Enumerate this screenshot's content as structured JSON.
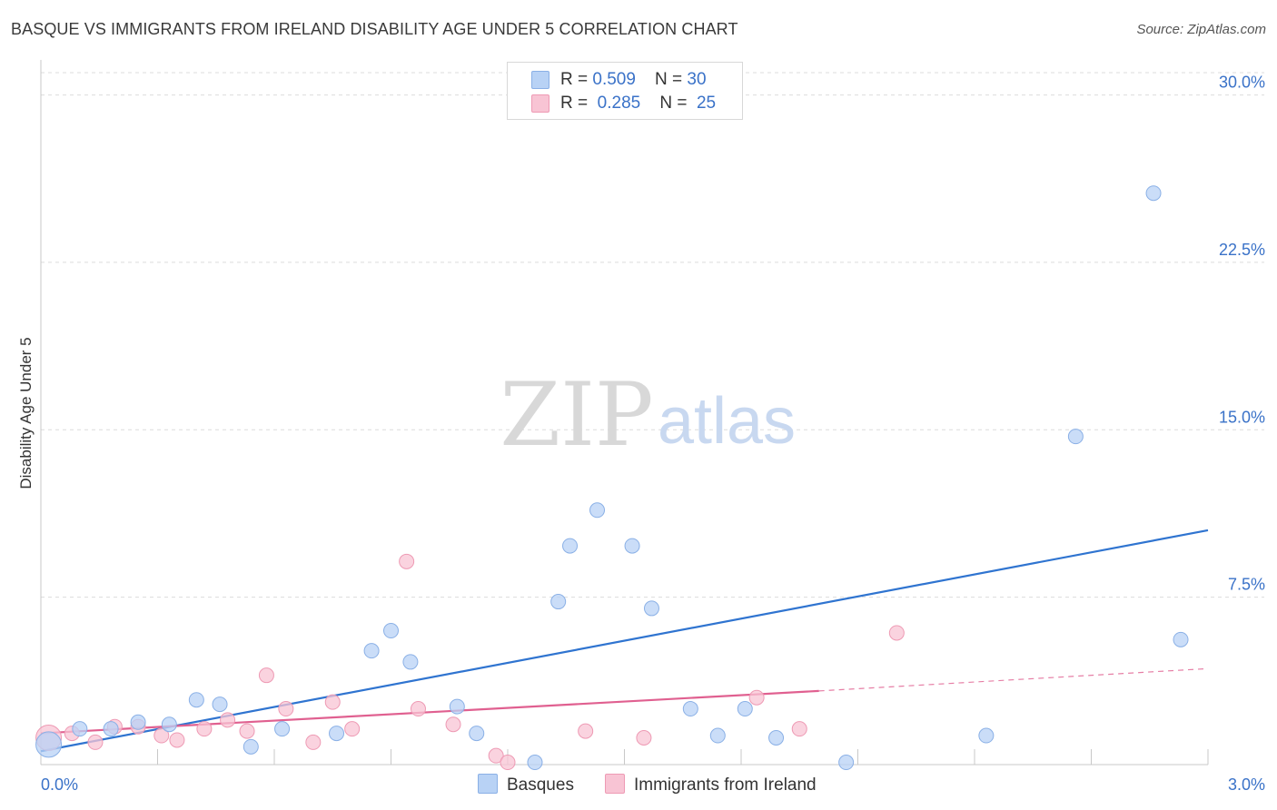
{
  "title": "BASQUE VS IMMIGRANTS FROM IRELAND DISABILITY AGE UNDER 5 CORRELATION CHART",
  "source": "Source: ZipAtlas.com",
  "watermark": {
    "zip": "ZIP",
    "atlas": "atlas"
  },
  "legend": {
    "rows": [
      {
        "r_label": "R = ",
        "r_value": "0.509",
        "n_label": "N = ",
        "n_value": "30"
      },
      {
        "r_label": "R = ",
        "r_value": "0.285",
        "n_label": "N = ",
        "n_value": "25"
      }
    ]
  },
  "bottom_legend": {
    "basques": "Basques",
    "ireland": "Immigrants from Ireland"
  },
  "colors": {
    "basques_fill": "#b8d2f5",
    "basques_stroke": "#8ab0e6",
    "basques_line": "#2f74d0",
    "ireland_fill": "#f8c4d4",
    "ireland_stroke": "#ee9ab4",
    "ireland_line": "#e06090"
  },
  "chart_data": {
    "type": "scatter",
    "title": "BASQUE VS IMMIGRANTS FROM IRELAND DISABILITY AGE UNDER 5 CORRELATION CHART",
    "xlabel": "",
    "ylabel": "Disability Age Under 5",
    "xlim": [
      0,
      3.0
    ],
    "ylim": [
      0,
      31.0
    ],
    "x_tick_labels": [
      "0.0%",
      "3.0%"
    ],
    "y_ticks": [
      7.5,
      15.0,
      22.5,
      30.0
    ],
    "y_tick_labels": [
      "7.5%",
      "15.0%",
      "22.5%",
      "30.0%"
    ],
    "grid": true,
    "series": [
      {
        "name": "Basques",
        "points": [
          [
            0.02,
            0.9
          ],
          [
            0.1,
            1.6
          ],
          [
            0.18,
            1.6
          ],
          [
            0.25,
            1.9
          ],
          [
            0.33,
            1.8
          ],
          [
            0.4,
            2.9
          ],
          [
            0.46,
            2.7
          ],
          [
            0.54,
            0.8
          ],
          [
            0.62,
            1.6
          ],
          [
            0.76,
            1.4
          ],
          [
            0.85,
            5.1
          ],
          [
            0.9,
            6.0
          ],
          [
            0.95,
            4.6
          ],
          [
            1.07,
            2.6
          ],
          [
            1.12,
            1.4
          ],
          [
            1.27,
            0.1
          ],
          [
            1.33,
            7.3
          ],
          [
            1.36,
            9.8
          ],
          [
            1.43,
            11.4
          ],
          [
            1.52,
            9.8
          ],
          [
            1.57,
            7.0
          ],
          [
            1.67,
            2.5
          ],
          [
            1.74,
            1.3
          ],
          [
            1.81,
            2.5
          ],
          [
            1.89,
            1.2
          ],
          [
            2.07,
            0.1
          ],
          [
            2.43,
            1.3
          ],
          [
            2.66,
            14.7
          ],
          [
            2.86,
            25.6
          ],
          [
            2.93,
            5.6
          ]
        ],
        "trend": {
          "x": [
            0.0,
            3.0
          ],
          "y": [
            0.6,
            10.5
          ]
        }
      },
      {
        "name": "Immigrants from Ireland",
        "points": [
          [
            0.02,
            1.2
          ],
          [
            0.08,
            1.4
          ],
          [
            0.14,
            1.0
          ],
          [
            0.19,
            1.7
          ],
          [
            0.25,
            1.7
          ],
          [
            0.31,
            1.3
          ],
          [
            0.35,
            1.1
          ],
          [
            0.42,
            1.6
          ],
          [
            0.48,
            2.0
          ],
          [
            0.53,
            1.5
          ],
          [
            0.58,
            4.0
          ],
          [
            0.63,
            2.5
          ],
          [
            0.7,
            1.0
          ],
          [
            0.75,
            2.8
          ],
          [
            0.8,
            1.6
          ],
          [
            0.94,
            9.1
          ],
          [
            0.97,
            2.5
          ],
          [
            1.06,
            1.8
          ],
          [
            1.17,
            0.4
          ],
          [
            1.2,
            0.1
          ],
          [
            1.4,
            1.5
          ],
          [
            1.55,
            1.2
          ],
          [
            1.84,
            3.0
          ],
          [
            1.95,
            1.6
          ],
          [
            2.2,
            5.9
          ]
        ],
        "trend": {
          "x": [
            0.0,
            2.0
          ],
          "y": [
            1.4,
            3.3
          ]
        },
        "trend_dashed": {
          "x": [
            2.0,
            3.0
          ],
          "y": [
            3.3,
            4.3
          ]
        }
      }
    ]
  }
}
